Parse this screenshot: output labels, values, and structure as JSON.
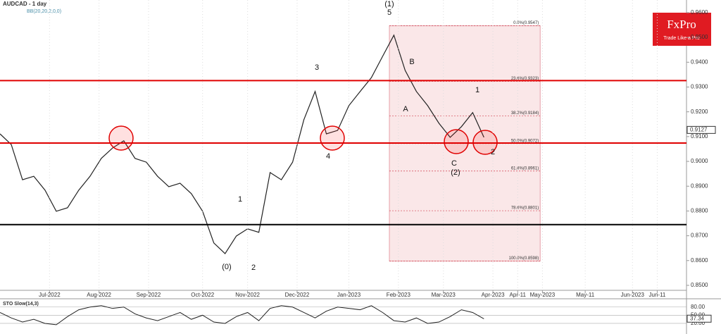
{
  "chart_data": {
    "type": "line",
    "title": "AUDCAD - 1 day",
    "subtitle": "BB(20,20,2,0,0)",
    "x": [
      0,
      5,
      10,
      15,
      20,
      25,
      30,
      35,
      40,
      45,
      50,
      55,
      60,
      65,
      70,
      75,
      80,
      85,
      90,
      95,
      100,
      105,
      110,
      115,
      120,
      125,
      130,
      135,
      140,
      145,
      150,
      155,
      160,
      165,
      170,
      175,
      180,
      185,
      190,
      195,
      200,
      205,
      210,
      215
    ],
    "values": [
      0.9111,
      0.9068,
      0.8926,
      0.894,
      0.8884,
      0.8799,
      0.8813,
      0.8884,
      0.894,
      0.9012,
      0.9054,
      0.9083,
      0.9012,
      0.8997,
      0.894,
      0.8898,
      0.8912,
      0.887,
      0.8799,
      0.8671,
      0.8628,
      0.8699,
      0.8728,
      0.8714,
      0.8955,
      0.8926,
      0.8997,
      0.9168,
      0.9282,
      0.9111,
      0.9125,
      0.9225,
      0.9282,
      0.9338,
      0.9424,
      0.9509,
      0.9367,
      0.9282,
      0.9225,
      0.9154,
      0.9097,
      0.914,
      0.9197,
      0.9097
    ],
    "color": "#222222",
    "xlim": [
      0,
      305
    ],
    "xticks": [
      {
        "value": 22,
        "label": "Jul-2022"
      },
      {
        "value": 44,
        "label": "Aug-2022"
      },
      {
        "value": 66,
        "label": "Sep-2022"
      },
      {
        "value": 90,
        "label": "Oct-2022"
      },
      {
        "value": 110,
        "label": "Nov-2022"
      },
      {
        "value": 132,
        "label": "Dec-2022"
      },
      {
        "value": 155,
        "label": "Jan-2023"
      },
      {
        "value": 177,
        "label": "Feb-2023"
      },
      {
        "value": 197,
        "label": "Mar-2023"
      },
      {
        "value": 219,
        "label": "Apr-2023"
      },
      {
        "value": 230,
        "label": "Apr-11"
      },
      {
        "value": 241,
        "label": "May-2023"
      },
      {
        "value": 260,
        "label": "May-11"
      },
      {
        "value": 281,
        "label": "Jun-2023"
      },
      {
        "value": 292,
        "label": "Jun-11"
      }
    ],
    "ylim": [
      0.848,
      0.9651
    ],
    "yticks": [
      {
        "value": 0.85,
        "label": "0.8500"
      },
      {
        "value": 0.86,
        "label": "0.8600"
      },
      {
        "value": 0.87,
        "label": "0.8700"
      },
      {
        "value": 0.88,
        "label": "0.8800"
      },
      {
        "value": 0.89,
        "label": "0.8900"
      },
      {
        "value": 0.9,
        "label": "0.9000"
      },
      {
        "value": 0.91,
        "label": "0.9100"
      },
      {
        "value": 0.92,
        "label": "0.9200"
      },
      {
        "value": 0.93,
        "label": "0.9300"
      },
      {
        "value": 0.94,
        "label": "0.9400"
      },
      {
        "value": 0.95,
        "label": "0.9500"
      },
      {
        "value": 0.96,
        "label": "0.9600"
      }
    ],
    "last_price": 0.9127,
    "hlines": [
      {
        "value": 0.9326,
        "color": "#e00000"
      },
      {
        "value": 0.9074,
        "color": "#e00000"
      },
      {
        "value": 0.8745,
        "color": "#000000"
      }
    ],
    "fib_range": [
      173,
      240
    ],
    "fib_levels": [
      {
        "value": 0.9547,
        "label": "0.0%(0.9547)"
      },
      {
        "value": 0.9323,
        "label": "23.6%(0.9323)"
      },
      {
        "value": 0.9184,
        "label": "38.2%(0.9184)"
      },
      {
        "value": 0.9072,
        "label": "50.0%(0.9072)"
      },
      {
        "value": 0.8961,
        "label": "61.8%(0.8961)"
      },
      {
        "value": 0.8801,
        "label": "78.6%(0.8801)"
      },
      {
        "value": 0.8598,
        "label": "100.0%(0.8598)"
      }
    ],
    "annotations": [
      "(1)",
      "5",
      "3",
      "4",
      "1",
      "2",
      "(0)",
      "A",
      "B",
      "C",
      "(2)",
      "1",
      "2"
    ],
    "logo": {
      "brand": "FxPro",
      "tagline": "Trade Like a Pro"
    },
    "oscillator": {
      "title": "STO Slow(14,3)",
      "ylim": [
        0,
        100
      ],
      "yticks": [
        {
          "value": 20,
          "label": "20.00"
        },
        {
          "value": 50,
          "label": "50.00"
        },
        {
          "value": 80,
          "label": "80.00"
        }
      ],
      "last": {
        "value": 37.34,
        "label": "37.34"
      },
      "values": [
        60,
        40,
        25,
        35,
        20,
        15,
        45,
        70,
        80,
        85,
        75,
        80,
        55,
        40,
        30,
        45,
        60,
        35,
        50,
        25,
        20,
        45,
        60,
        30,
        75,
        85,
        80,
        60,
        40,
        65,
        80,
        75,
        70,
        85,
        60,
        30,
        25,
        40,
        20,
        25,
        45,
        70,
        60,
        37
      ],
      "color": "#222222"
    }
  }
}
